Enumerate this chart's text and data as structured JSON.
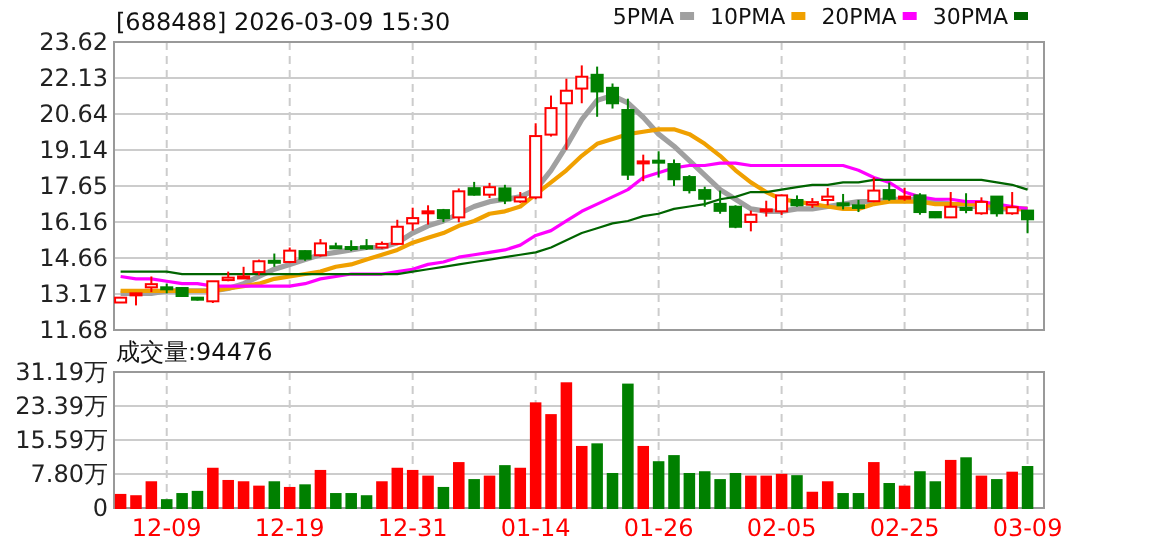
{
  "chart_data": [
    {
      "type": "candlestick",
      "title": "[688488] 2026-03-09 15:30",
      "tick_labels": "y",
      "grid": true,
      "legend": "top right",
      "categories": [
        null,
        null,
        null,
        null,
        null,
        null,
        null,
        null,
        null,
        null,
        null,
        null,
        null,
        null,
        null,
        null,
        null,
        null,
        null,
        null,
        null,
        null,
        null,
        null,
        null,
        null,
        null,
        null,
        null,
        null,
        null,
        null,
        null,
        null,
        null,
        null,
        null,
        null,
        null,
        null,
        null,
        null,
        null,
        null,
        null,
        null,
        null,
        null,
        null,
        null,
        null,
        null,
        null,
        null,
        null,
        null,
        null,
        null,
        null,
        null
      ],
      "ohlc": [
        [
          12.82,
          13.05,
          12.8,
          13.02
        ],
        [
          13.15,
          13.22,
          12.7,
          13.2
        ],
        [
          13.45,
          13.9,
          13.25,
          13.58
        ],
        [
          13.45,
          13.6,
          13.2,
          13.4
        ],
        [
          13.42,
          13.45,
          13.05,
          13.09
        ],
        [
          13.02,
          13.05,
          12.9,
          12.97
        ],
        [
          12.87,
          13.7,
          12.8,
          13.7
        ],
        [
          13.75,
          14.1,
          13.7,
          13.85
        ],
        [
          13.85,
          14.3,
          13.8,
          13.9
        ],
        [
          14.08,
          14.6,
          13.95,
          14.53
        ],
        [
          14.55,
          14.85,
          14.3,
          14.5
        ],
        [
          14.5,
          15.1,
          14.45,
          14.97
        ],
        [
          14.95,
          14.98,
          14.55,
          14.64
        ],
        [
          14.78,
          15.45,
          14.72,
          15.27
        ],
        [
          15.15,
          15.3,
          15.05,
          15.1
        ],
        [
          15.12,
          15.4,
          14.95,
          15.1
        ],
        [
          15.15,
          15.45,
          15.0,
          15.1
        ],
        [
          15.1,
          15.35,
          15.05,
          15.25
        ],
        [
          15.25,
          16.25,
          15.2,
          15.96
        ],
        [
          16.1,
          16.75,
          15.8,
          16.32
        ],
        [
          16.55,
          16.85,
          16.05,
          16.6
        ],
        [
          16.65,
          16.7,
          16.15,
          16.32
        ],
        [
          16.35,
          17.55,
          16.15,
          17.43
        ],
        [
          17.56,
          17.82,
          17.25,
          17.29
        ],
        [
          17.29,
          17.78,
          17.15,
          17.6
        ],
        [
          17.55,
          17.7,
          16.9,
          17.05
        ],
        [
          17.01,
          17.4,
          16.95,
          17.18
        ],
        [
          17.18,
          20.25,
          17.1,
          19.72
        ],
        [
          19.78,
          21.4,
          19.7,
          20.88
        ],
        [
          21.08,
          22.1,
          19.15,
          21.6
        ],
        [
          21.69,
          22.65,
          21.08,
          22.18
        ],
        [
          22.26,
          22.6,
          20.52,
          21.57
        ],
        [
          21.72,
          21.9,
          20.86,
          21.08
        ],
        [
          20.8,
          21.27,
          17.9,
          18.12
        ],
        [
          18.6,
          18.95,
          17.85,
          18.67
        ],
        [
          18.7,
          19.09,
          18.0,
          18.62
        ],
        [
          18.56,
          18.75,
          17.65,
          17.93
        ],
        [
          18.02,
          18.1,
          17.34,
          17.48
        ],
        [
          17.48,
          17.62,
          16.79,
          17.12
        ],
        [
          16.91,
          17.46,
          16.5,
          16.62
        ],
        [
          16.79,
          16.85,
          15.9,
          15.96
        ],
        [
          16.16,
          16.63,
          15.77,
          16.46
        ],
        [
          16.65,
          17.04,
          16.38,
          16.68
        ],
        [
          16.6,
          17.3,
          16.45,
          17.26
        ],
        [
          17.07,
          17.26,
          16.79,
          16.85
        ],
        [
          16.88,
          17.15,
          16.74,
          16.98
        ],
        [
          17.07,
          17.57,
          16.85,
          17.21
        ],
        [
          16.93,
          17.32,
          16.68,
          16.9
        ],
        [
          16.85,
          17.07,
          16.57,
          16.74
        ],
        [
          17.02,
          18.01,
          16.98,
          17.46
        ],
        [
          17.48,
          17.79,
          17.04,
          17.12
        ],
        [
          17.18,
          17.57,
          17.04,
          17.21
        ],
        [
          17.26,
          17.35,
          16.46,
          16.57
        ],
        [
          16.57,
          16.57,
          16.32,
          16.35
        ],
        [
          16.35,
          17.4,
          16.32,
          16.79
        ],
        [
          16.74,
          17.35,
          16.52,
          16.68
        ],
        [
          16.52,
          17.18,
          16.46,
          16.99
        ],
        [
          17.21,
          17.21,
          16.38,
          16.52
        ],
        [
          16.52,
          17.4,
          16.46,
          16.77
        ],
        [
          16.63,
          16.63,
          15.69,
          16.27
        ]
      ],
      "colors": [
        "#ff0000",
        "#ff0000",
        "#ff0000",
        "#008000",
        "#008000",
        "#008000",
        "#ff0000",
        "#ff0000",
        "#ff0000",
        "#ff0000",
        "#008000",
        "#ff0000",
        "#008000",
        "#ff0000",
        "#008000",
        "#008000",
        "#008000",
        "#ff0000",
        "#ff0000",
        "#ff0000",
        "#ff0000",
        "#008000",
        "#ff0000",
        "#008000",
        "#ff0000",
        "#008000",
        "#ff0000",
        "#ff0000",
        "#ff0000",
        "#ff0000",
        "#ff0000",
        "#008000",
        "#008000",
        "#008000",
        "#ff0000",
        "#008000",
        "#008000",
        "#008000",
        "#008000",
        "#008000",
        "#008000",
        "#ff0000",
        "#ff0000",
        "#ff0000",
        "#008000",
        "#ff0000",
        "#ff0000",
        "#008000",
        "#008000",
        "#ff0000",
        "#008000",
        "#ff0000",
        "#008000",
        "#008000",
        "#ff0000",
        "#008000",
        "#ff0000",
        "#008000",
        "#ff0000",
        "#008000"
      ],
      "series": [
        {
          "type": "line",
          "name": "5PMA",
          "color": "#a0a0a0",
          "values": [
            13.2,
            13.2,
            13.2,
            13.3,
            13.3,
            13.3,
            13.3,
            13.4,
            13.6,
            13.9,
            14.2,
            14.4,
            14.6,
            14.8,
            14.9,
            15.0,
            15.1,
            15.1,
            15.3,
            15.7,
            16.0,
            16.2,
            16.5,
            16.8,
            17.0,
            17.1,
            17.2,
            17.5,
            18.3,
            19.3,
            20.4,
            21.2,
            21.4,
            21.1,
            20.5,
            19.8,
            19.3,
            18.7,
            18.1,
            17.5,
            17.1,
            16.7,
            16.6,
            16.6,
            16.7,
            16.7,
            16.8,
            16.9,
            17.0,
            17.0,
            17.1,
            17.1,
            17.1,
            17.0,
            16.9,
            16.8,
            16.8,
            16.7,
            16.7,
            16.7
          ]
        },
        {
          "type": "line",
          "name": "10PMA",
          "color": "#f0a000",
          "values": [
            13.3,
            13.3,
            13.3,
            13.3,
            13.3,
            13.3,
            13.3,
            13.4,
            13.5,
            13.6,
            13.8,
            13.9,
            14.0,
            14.1,
            14.3,
            14.4,
            14.6,
            14.8,
            15.0,
            15.3,
            15.5,
            15.7,
            16.0,
            16.2,
            16.5,
            16.6,
            16.8,
            17.3,
            17.8,
            18.3,
            18.9,
            19.4,
            19.6,
            19.8,
            19.9,
            20.0,
            20.0,
            19.8,
            19.4,
            18.9,
            18.3,
            17.8,
            17.4,
            17.1,
            17.0,
            16.9,
            16.8,
            16.7,
            16.7,
            16.9,
            17.0,
            17.0,
            17.0,
            16.9,
            16.9,
            16.9,
            16.9,
            16.8,
            16.7,
            16.7
          ]
        },
        {
          "type": "line",
          "name": "20PMA",
          "color": "#ff00ff",
          "values": [
            13.9,
            13.8,
            13.8,
            13.7,
            13.6,
            13.6,
            13.5,
            13.5,
            13.5,
            13.5,
            13.5,
            13.5,
            13.6,
            13.8,
            13.9,
            14.0,
            14.0,
            14.0,
            14.1,
            14.2,
            14.4,
            14.5,
            14.7,
            14.8,
            14.9,
            15.0,
            15.2,
            15.6,
            15.8,
            16.2,
            16.6,
            16.9,
            17.2,
            17.5,
            18.0,
            18.2,
            18.4,
            18.5,
            18.5,
            18.6,
            18.6,
            18.5,
            18.5,
            18.5,
            18.5,
            18.5,
            18.5,
            18.5,
            18.3,
            18.0,
            17.8,
            17.4,
            17.2,
            17.1,
            17.1,
            17.0,
            17.0,
            16.9,
            16.8,
            16.7
          ]
        },
        {
          "type": "line",
          "name": "30PMA",
          "color": "#006400",
          "values": [
            14.1,
            14.1,
            14.1,
            14.1,
            14.0,
            14.0,
            14.0,
            14.0,
            14.0,
            14.0,
            14.0,
            14.0,
            14.0,
            14.0,
            14.0,
            14.0,
            14.0,
            14.0,
            14.0,
            14.1,
            14.2,
            14.3,
            14.4,
            14.5,
            14.6,
            14.7,
            14.8,
            14.9,
            15.1,
            15.4,
            15.7,
            15.9,
            16.1,
            16.2,
            16.4,
            16.5,
            16.7,
            16.8,
            16.9,
            17.1,
            17.2,
            17.4,
            17.4,
            17.5,
            17.6,
            17.7,
            17.7,
            17.8,
            17.8,
            17.9,
            17.9,
            17.9,
            17.9,
            17.9,
            17.9,
            17.9,
            17.9,
            17.8,
            17.7,
            17.5
          ]
        }
      ],
      "ylim": [
        11.68,
        23.62
      ],
      "yticks": [
        11.68,
        13.17,
        14.66,
        16.16,
        17.65,
        19.14,
        20.64,
        22.13,
        23.62
      ]
    },
    {
      "type": "bar",
      "title": "成交量:94476",
      "grid": true,
      "categories": [
        null,
        null,
        null,
        "12-09",
        null,
        null,
        null,
        null,
        null,
        null,
        null,
        "12-19",
        null,
        null,
        null,
        null,
        null,
        null,
        null,
        "12-31",
        null,
        null,
        null,
        null,
        null,
        null,
        null,
        "01-14",
        null,
        null,
        null,
        null,
        null,
        null,
        null,
        "01-26",
        null,
        null,
        null,
        null,
        null,
        null,
        null,
        "02-05",
        null,
        null,
        null,
        null,
        null,
        null,
        null,
        "02-25",
        null,
        null,
        null,
        null,
        null,
        null,
        null,
        "03-09"
      ],
      "values": [
        3.0,
        2.7,
        5.9,
        1.8,
        3.2,
        3.7,
        9.0,
        6.2,
        5.9,
        4.9,
        5.9,
        4.6,
        5.2,
        8.5,
        3.2,
        3.2,
        2.7,
        5.9,
        9.0,
        8.5,
        7.2,
        4.6,
        10.3,
        6.4,
        7.2,
        9.6,
        9.0,
        24.0,
        21.3,
        28.6,
        14.0,
        14.6,
        7.8,
        28.3,
        14.0,
        10.5,
        11.9,
        7.8,
        8.2,
        6.4,
        7.8,
        7.2,
        7.2,
        7.6,
        7.3,
        3.5,
        5.9,
        3.2,
        3.2,
        10.3,
        5.5,
        4.9,
        8.2,
        5.9,
        10.8,
        11.4,
        7.2,
        6.4,
        8.1,
        9.4
      ],
      "colors": [
        "#ff0000",
        "#ff0000",
        "#ff0000",
        "#008000",
        "#008000",
        "#008000",
        "#ff0000",
        "#ff0000",
        "#ff0000",
        "#ff0000",
        "#008000",
        "#ff0000",
        "#008000",
        "#ff0000",
        "#008000",
        "#008000",
        "#008000",
        "#ff0000",
        "#ff0000",
        "#ff0000",
        "#ff0000",
        "#008000",
        "#ff0000",
        "#008000",
        "#ff0000",
        "#008000",
        "#ff0000",
        "#ff0000",
        "#ff0000",
        "#ff0000",
        "#ff0000",
        "#008000",
        "#008000",
        "#008000",
        "#ff0000",
        "#008000",
        "#008000",
        "#008000",
        "#008000",
        "#008000",
        "#008000",
        "#ff0000",
        "#ff0000",
        "#ff0000",
        "#008000",
        "#ff0000",
        "#ff0000",
        "#008000",
        "#008000",
        "#ff0000",
        "#008000",
        "#ff0000",
        "#008000",
        "#008000",
        "#ff0000",
        "#008000",
        "#ff0000",
        "#008000",
        "#ff0000",
        "#008000"
      ],
      "ylim": [
        0,
        31.19
      ],
      "yticks": [
        0,
        {
          "value": 7.8,
          "label": "7.80万"
        },
        {
          "value": 15.59,
          "label": "15.59万"
        },
        {
          "value": 23.39,
          "label": "23.39万"
        },
        {
          "value": 31.19,
          "label": "31.19万"
        }
      ]
    }
  ]
}
